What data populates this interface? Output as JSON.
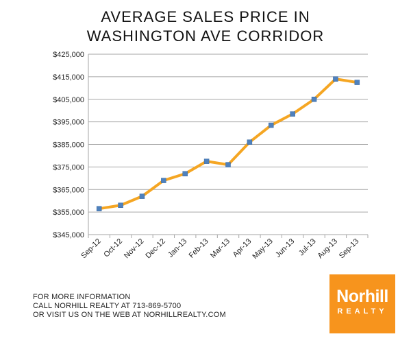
{
  "chart_data": {
    "type": "line",
    "title_line1": "AVERAGE SALES PRICE IN",
    "title_line2": "WASHINGTON AVE CORRIDOR",
    "xlabel": "",
    "ylabel": "",
    "categories": [
      "Sep-12",
      "Oct-12",
      "Nov-12",
      "Dec-12",
      "Jan-13",
      "Feb-13",
      "Mar-13",
      "Apr-13",
      "May-13",
      "Jun-13",
      "Jul-13",
      "Aug-13",
      "Sep-13"
    ],
    "series": [
      {
        "values": [
          356500,
          358000,
          362000,
          369000,
          372000,
          377500,
          376000,
          386000,
          393500,
          398500,
          405000,
          414000,
          412500
        ]
      }
    ],
    "ylim": [
      345000,
      425000
    ],
    "yticks": [
      345000,
      355000,
      365000,
      375000,
      385000,
      395000,
      405000,
      415000,
      425000
    ],
    "ytick_labels": [
      "$345,000",
      "$355,000",
      "$365,000",
      "$375,000",
      "$385,000",
      "$395,000",
      "$405,000",
      "$415,000",
      "$425,000"
    ],
    "grid": true,
    "line_color": "#f5a623",
    "marker_color": "#4f81bd"
  },
  "footer": {
    "line1": "FOR MORE INFORMATION",
    "line2": "CALL NORHILL REALTY AT 713-869-5700",
    "line3": "OR VISIT US ON THE WEB AT NORHILLREALTY.COM"
  },
  "logo": {
    "brand": "Norhill",
    "sub": "REALTY",
    "color": "#f7941d"
  }
}
